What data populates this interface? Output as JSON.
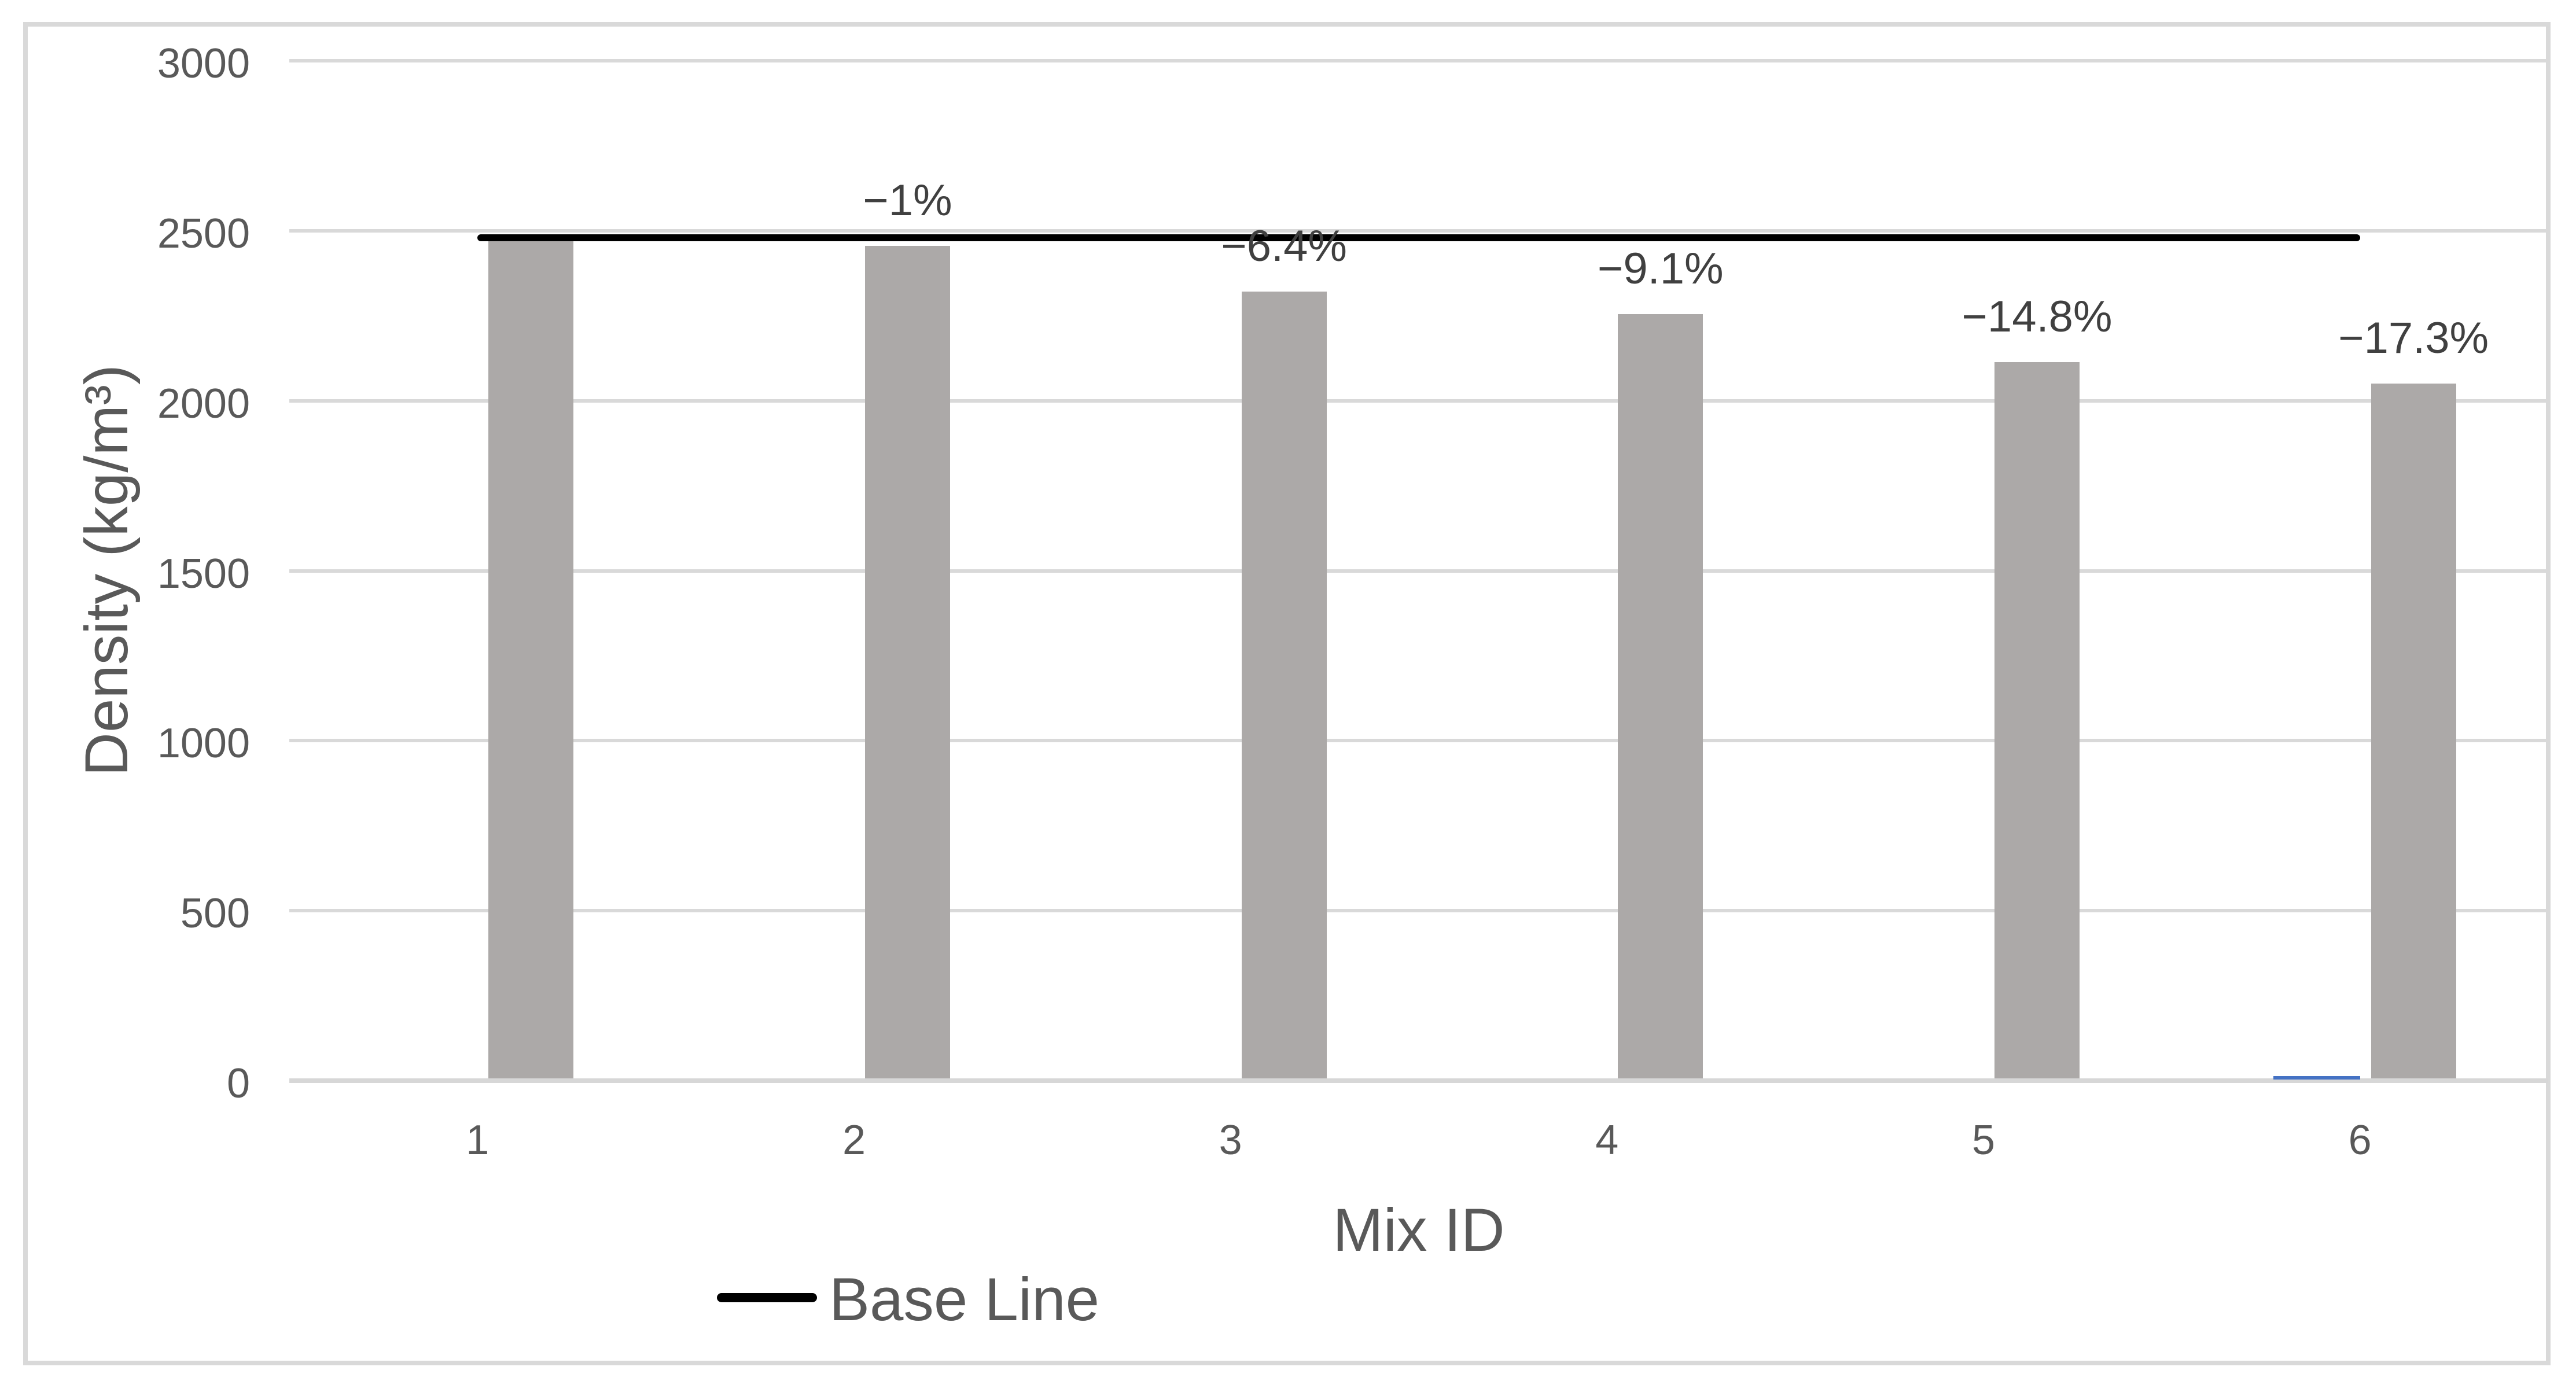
{
  "chart_data": {
    "type": "bar",
    "title": "",
    "categories": [
      "1",
      "2",
      "3",
      "4",
      "5",
      "6"
    ],
    "series": [
      {
        "name": "Density",
        "color": "#ACA9A8",
        "values": [
          2480,
          2455,
          2321,
          2254,
          2113,
          2051
        ]
      },
      {
        "name": "unlabeled-blue-series",
        "color": "#4472C4",
        "values": [
          0,
          0,
          0,
          0,
          0,
          10
        ]
      }
    ],
    "data_labels": [
      "",
      "−1%",
      "−6.4%",
      "−9.1%",
      "−14.8%",
      "−17.3%"
    ],
    "baseline": {
      "label": "Base Line",
      "value": 2480,
      "color": "#000000"
    },
    "xlabel": "Mix ID",
    "ylabel": "Density (kg/m³)",
    "ylim": [
      0,
      3000
    ],
    "ytick_step": 500,
    "yticks": [
      "0",
      "500",
      "1000",
      "1500",
      "2000",
      "2500",
      "3000"
    ],
    "grid": true,
    "legend_position": "bottom"
  },
  "legend": {
    "items": [
      {
        "label": "Base Line",
        "marker": "line",
        "color": "#000000"
      }
    ]
  },
  "colors": {
    "background": "#FFFFFF",
    "chart_border": "#D9D9D9",
    "gridline": "#D9D9D9",
    "axis_line": "#D7D7D7",
    "axis_text": "#595959",
    "data_label_text": "#404040",
    "bar": "#ACA9A8",
    "baseline": "#000000",
    "blue_sliver": "#4472C4"
  }
}
